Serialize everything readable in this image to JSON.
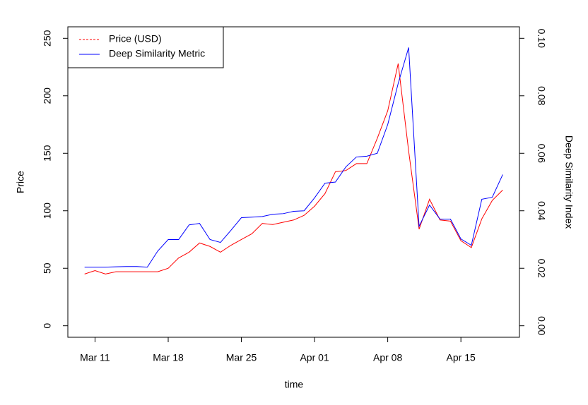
{
  "chart_data": {
    "type": "line",
    "x_label": "time",
    "y_label": "Price",
    "y2_label": "Deep Similarity Index",
    "x": [
      "Mar 10",
      "Mar 11",
      "Mar 12",
      "Mar 13",
      "Mar 14",
      "Mar 15",
      "Mar 16",
      "Mar 17",
      "Mar 18",
      "Mar 19",
      "Mar 20",
      "Mar 21",
      "Mar 22",
      "Mar 23",
      "Mar 24",
      "Mar 25",
      "Mar 26",
      "Mar 27",
      "Mar 28",
      "Mar 29",
      "Mar 30",
      "Mar 31",
      "Apr 01",
      "Apr 02",
      "Apr 03",
      "Apr 04",
      "Apr 05",
      "Apr 06",
      "Apr 07",
      "Apr 08",
      "Apr 09",
      "Apr 10",
      "Apr 11",
      "Apr 12",
      "Apr 13",
      "Apr 14",
      "Apr 15",
      "Apr 16",
      "Apr 17",
      "Apr 18",
      "Apr 19"
    ],
    "xticks": [
      "Mar 11",
      "Mar 18",
      "Mar 25",
      "Apr 01",
      "Apr 08",
      "Apr 15"
    ],
    "ylim": [
      -10,
      260
    ],
    "yticks": [
      0,
      50,
      100,
      150,
      200,
      250
    ],
    "y2lim": [
      -0.004,
      0.104
    ],
    "y2ticks": [
      {
        "value": 0,
        "label": "0.00"
      },
      {
        "value": 0.02,
        "label": "0.02"
      },
      {
        "value": 0.04,
        "label": "0.04"
      },
      {
        "value": 0.06,
        "label": "0.06"
      },
      {
        "value": 0.08,
        "label": "0.08"
      },
      {
        "value": 0.1,
        "label": "0.10"
      }
    ],
    "legend": "topleft",
    "series": [
      {
        "name": "Price (USD)",
        "color": "#ff0000",
        "values": [
          45,
          48,
          45,
          47,
          47,
          47,
          47,
          47,
          50,
          59,
          64,
          72,
          69,
          64,
          70,
          75,
          80,
          89,
          88,
          90,
          92,
          96,
          104,
          115,
          134,
          135,
          141,
          141,
          163,
          187,
          228,
          152,
          84,
          110,
          92,
          91,
          74,
          68,
          93,
          109,
          118
        ]
      },
      {
        "name": "Deep Similarity Metric",
        "color": "#0000ff",
        "axis": "y2",
        "values": [
          0.0204,
          0.0204,
          0.0204,
          0.0205,
          0.0206,
          0.0206,
          0.0204,
          0.026,
          0.03,
          0.03,
          0.0351,
          0.0356,
          0.03,
          0.029,
          0.0332,
          0.0376,
          0.0378,
          0.038,
          0.0388,
          0.039,
          0.0398,
          0.04,
          0.0445,
          0.0496,
          0.05,
          0.0553,
          0.0587,
          0.059,
          0.06,
          0.07,
          0.0843,
          0.0968,
          0.0346,
          0.042,
          0.0371,
          0.0371,
          0.0302,
          0.028,
          0.044,
          0.0447,
          0.0526
        ]
      }
    ]
  }
}
